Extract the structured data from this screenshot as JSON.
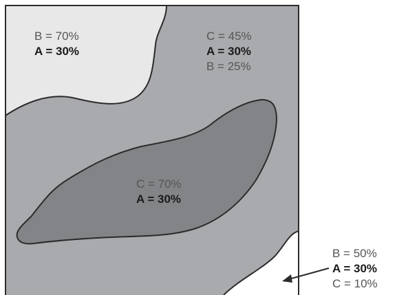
{
  "colors": {
    "region_top_left": "#e8e8e9",
    "region_middle": "#a9aaad",
    "region_center": "#838487",
    "region_bottom_right": "#ffffff",
    "outline": "#2b2b2b",
    "text_normal": "#555555",
    "text_bold": "#1a1a1a"
  },
  "regions": {
    "top_left": {
      "line1": "B = 70%",
      "line2": "A = 30%"
    },
    "top_right": {
      "line1": "C = 45%",
      "line2": "A = 30%",
      "line3": "B = 25%"
    },
    "center": {
      "line1": "C = 70%",
      "line2": "A = 30%"
    },
    "bottom_right": {
      "line1": "B = 50%",
      "line2": "A = 30%",
      "line3": "C = 10%"
    }
  }
}
